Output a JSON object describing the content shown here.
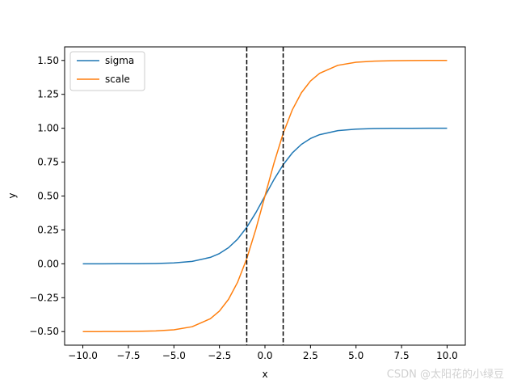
{
  "chart_data": {
    "type": "line",
    "title": "",
    "xlabel": "x",
    "ylabel": "y",
    "xlim": [
      -11.0,
      11.0
    ],
    "ylim": [
      -0.6,
      1.6
    ],
    "xticks": [
      -10.0,
      -7.5,
      -5.0,
      -2.5,
      0.0,
      2.5,
      5.0,
      7.5,
      10.0
    ],
    "xtick_labels": [
      "−10.0",
      "−7.5",
      "−5.0",
      "−2.5",
      "0.0",
      "2.5",
      "5.0",
      "7.5",
      "10.0"
    ],
    "yticks": [
      -0.5,
      -0.25,
      0.0,
      0.25,
      0.5,
      0.75,
      1.0,
      1.25,
      1.5
    ],
    "ytick_labels": [
      "−0.50",
      "−0.25",
      "0.00",
      "0.25",
      "0.50",
      "0.75",
      "1.00",
      "1.25",
      "1.50"
    ],
    "grid": false,
    "legend_position": "upper-left",
    "series": [
      {
        "name": "sigma",
        "color": "#1f77b4",
        "x": [
          -10,
          -9,
          -8,
          -7,
          -6,
          -5,
          -4,
          -3,
          -2.5,
          -2,
          -1.5,
          -1,
          -0.5,
          0,
          0.5,
          1,
          1.5,
          2,
          2.5,
          3,
          4,
          5,
          6,
          7,
          8,
          9,
          10
        ],
        "y": [
          0.0,
          0.0001,
          0.0003,
          0.0009,
          0.0025,
          0.0067,
          0.018,
          0.0474,
          0.0759,
          0.1192,
          0.1824,
          0.2689,
          0.3775,
          0.5,
          0.6225,
          0.7311,
          0.8176,
          0.8808,
          0.9241,
          0.9526,
          0.982,
          0.9933,
          0.9975,
          0.9991,
          0.9997,
          0.9999,
          1.0
        ]
      },
      {
        "name": "scale",
        "color": "#ff7f0e",
        "x": [
          -10,
          -9,
          -8,
          -7,
          -6,
          -5,
          -4,
          -3,
          -2.5,
          -2,
          -1.5,
          -1,
          -0.5,
          0,
          0.5,
          1,
          1.5,
          2,
          2.5,
          3,
          4,
          5,
          6,
          7,
          8,
          9,
          10
        ],
        "y": [
          -0.5,
          -0.4998,
          -0.4993,
          -0.4982,
          -0.495,
          -0.4866,
          -0.464,
          -0.4051,
          -0.3483,
          -0.2616,
          -0.1352,
          0.0379,
          0.2551,
          0.5,
          0.7449,
          0.9621,
          1.1352,
          1.2616,
          1.3483,
          1.4051,
          1.464,
          1.4866,
          1.495,
          1.4982,
          1.4993,
          1.4998,
          1.5
        ]
      }
    ],
    "vlines": [
      {
        "x": -1.0,
        "style": "dashed",
        "color": "#000000"
      },
      {
        "x": 1.0,
        "style": "dashed",
        "color": "#000000"
      }
    ]
  },
  "watermark": "CSDN @太阳花的小绿豆"
}
